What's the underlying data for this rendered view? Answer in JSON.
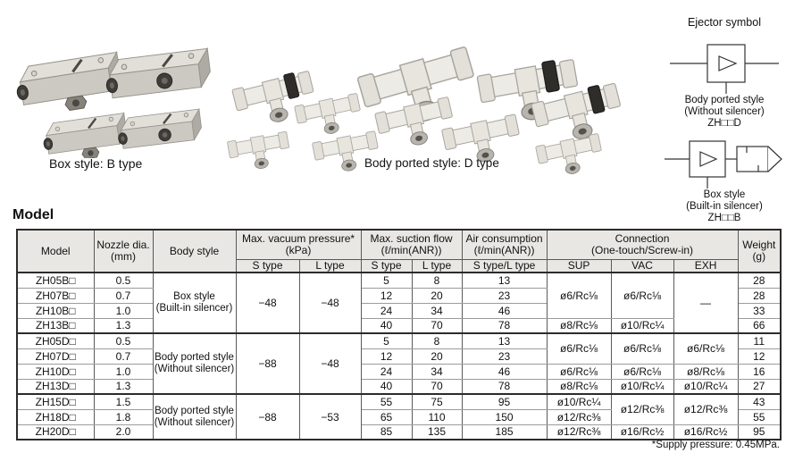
{
  "photos": {
    "box_style_label": "Box style: B type",
    "body_ported_label": "Body ported style: D type"
  },
  "ejector_symbols": {
    "title": "Ejector symbol",
    "body_ported": {
      "line1": "Body ported style",
      "line2": "(Without silencer)",
      "line3": "ZH□□D"
    },
    "box": {
      "line1": "Box style",
      "line2": "(Built-in silencer)",
      "line3": "ZH□□B"
    }
  },
  "model_section": {
    "heading": "Model",
    "footnote": "*Supply pressure: 0.45MPa.",
    "table": {
      "headers": {
        "col_model": "Model",
        "col_nozzle_l1": "Nozzle dia.",
        "col_nozzle_l2": "(mm)",
        "col_body": "Body style",
        "col_vac_l1": "Max. vacuum pressure*",
        "col_vac_l2": "(kPa)",
        "col_suction_l1": "Max. suction flow",
        "col_suction_l2": "(ℓ/min(ANR))",
        "col_air_l1": "Air consumption",
        "col_air_l2": "(ℓ/min(ANR))",
        "col_conn_l1": "Connection",
        "col_conn_l2": "(One-touch/Screw-in)",
        "col_weight_l1": "Weight",
        "col_weight_l2": "(g)",
        "sub_s_type": "S type",
        "sub_l_type": "L type",
        "sub_sl_type": "S type/L type",
        "sub_sup": "SUP",
        "sub_vac": "VAC",
        "sub_exh": "EXH"
      },
      "rows": [
        {
          "g": true,
          "cells": [
            {
              "t": "ZH05B□",
              "k": "model"
            },
            {
              "t": "0.5"
            },
            {
              "t": "Box style|(Built-in silencer)",
              "rs": 4,
              "k": "style"
            },
            {
              "t": "−48",
              "rs": 4
            },
            {
              "t": "−48",
              "rs": 4
            },
            {
              "t": "5"
            },
            {
              "t": "8"
            },
            {
              "t": "13"
            },
            {
              "t": "ø6/Rc⅛",
              "rs": 3
            },
            {
              "t": "ø6/Rc⅛",
              "rs": 3
            },
            {
              "t": "—",
              "rs": 4
            },
            {
              "t": "28"
            }
          ]
        },
        {
          "cells": [
            {
              "t": "ZH07B□",
              "k": "model"
            },
            {
              "t": "0.7"
            },
            {
              "t": "12"
            },
            {
              "t": "20"
            },
            {
              "t": "23"
            },
            {
              "t": "28"
            }
          ]
        },
        {
          "cells": [
            {
              "t": "ZH10B□",
              "k": "model"
            },
            {
              "t": "1.0"
            },
            {
              "t": "24"
            },
            {
              "t": "34"
            },
            {
              "t": "46"
            },
            {
              "t": "33"
            }
          ]
        },
        {
          "cells": [
            {
              "t": "ZH13B□",
              "k": "model"
            },
            {
              "t": "1.3"
            },
            {
              "t": "40"
            },
            {
              "t": "70"
            },
            {
              "t": "78"
            },
            {
              "t": "ø8/Rc⅛"
            },
            {
              "t": "ø10/Rc¼"
            },
            {
              "t": "66"
            }
          ]
        },
        {
          "g": true,
          "cells": [
            {
              "t": "ZH05D□",
              "k": "model"
            },
            {
              "t": "0.5"
            },
            {
              "t": "Body ported style|(Without silencer)",
              "rs": 4,
              "k": "style"
            },
            {
              "t": "−88",
              "rs": 4
            },
            {
              "t": "−48",
              "rs": 4
            },
            {
              "t": "5"
            },
            {
              "t": "8"
            },
            {
              "t": "13"
            },
            {
              "t": "ø6/Rc⅛",
              "rs": 2
            },
            {
              "t": "ø6/Rc⅛",
              "rs": 2
            },
            {
              "t": "ø6/Rc⅛",
              "rs": 2
            },
            {
              "t": "11"
            }
          ]
        },
        {
          "cells": [
            {
              "t": "ZH07D□",
              "k": "model"
            },
            {
              "t": "0.7"
            },
            {
              "t": "12"
            },
            {
              "t": "20"
            },
            {
              "t": "23"
            },
            {
              "t": "12"
            }
          ]
        },
        {
          "cells": [
            {
              "t": "ZH10D□",
              "k": "model"
            },
            {
              "t": "1.0"
            },
            {
              "t": "24"
            },
            {
              "t": "34"
            },
            {
              "t": "46"
            },
            {
              "t": "ø6/Rc⅛"
            },
            {
              "t": "ø6/Rc⅛"
            },
            {
              "t": "ø8/Rc⅛"
            },
            {
              "t": "16"
            }
          ]
        },
        {
          "cells": [
            {
              "t": "ZH13D□",
              "k": "model"
            },
            {
              "t": "1.3"
            },
            {
              "t": "40"
            },
            {
              "t": "70"
            },
            {
              "t": "78"
            },
            {
              "t": "ø8/Rc⅛"
            },
            {
              "t": "ø10/Rc¼"
            },
            {
              "t": "ø10/Rc¼"
            },
            {
              "t": "27"
            }
          ]
        },
        {
          "g": true,
          "cells": [
            {
              "t": "ZH15D□",
              "k": "model"
            },
            {
              "t": "1.5"
            },
            {
              "t": "Body ported style|(Without silencer)",
              "rs": 3,
              "k": "style"
            },
            {
              "t": "−88",
              "rs": 3
            },
            {
              "t": "−53",
              "rs": 3
            },
            {
              "t": "55"
            },
            {
              "t": "75"
            },
            {
              "t": "95"
            },
            {
              "t": "ø10/Rc¼"
            },
            {
              "t": "ø12/Rc⅜",
              "rs": 2
            },
            {
              "t": "ø12/Rc⅜",
              "rs": 2
            },
            {
              "t": "43"
            }
          ]
        },
        {
          "cells": [
            {
              "t": "ZH18D□",
              "k": "model"
            },
            {
              "t": "1.8"
            },
            {
              "t": "65"
            },
            {
              "t": "110"
            },
            {
              "t": "150"
            },
            {
              "t": "ø12/Rc⅜"
            },
            {
              "t": "55"
            }
          ]
        },
        {
          "cells": [
            {
              "t": "ZH20D□",
              "k": "model"
            },
            {
              "t": "2.0"
            },
            {
              "t": "85"
            },
            {
              "t": "135"
            },
            {
              "t": "185"
            },
            {
              "t": "ø12/Rc⅜"
            },
            {
              "t": "ø16/Rc½"
            },
            {
              "t": "ø16/Rc½"
            },
            {
              "t": "95"
            }
          ]
        }
      ]
    }
  }
}
